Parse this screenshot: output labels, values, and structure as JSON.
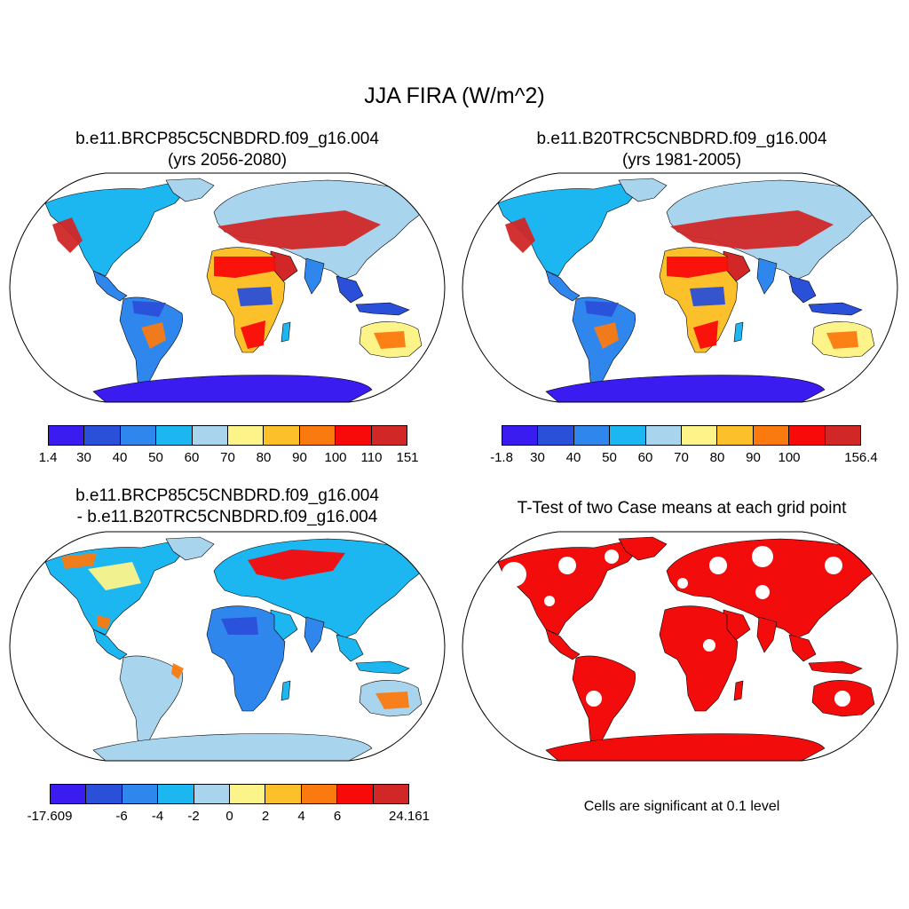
{
  "main_title": "JJA FIRA (W/m^2)",
  "palette": [
    "#3a1cf0",
    "#2a4fd8",
    "#2f87ee",
    "#1cb6f0",
    "#a8d4ee",
    "#fdf489",
    "#fcc12a",
    "#fb7a10",
    "#f90a0a",
    "#d12727"
  ],
  "significance_color": "#f20c0c",
  "panels": [
    {
      "id": "case1",
      "title_line1": "b.e11.BRCP85C5CNBDRD.f09_g16.004",
      "title_line2": "(yrs 2056-2080)",
      "colorbar_labels": [
        "1.4",
        "30",
        "40",
        "50",
        "60",
        "70",
        "80",
        "90",
        "100",
        "110",
        "151"
      ]
    },
    {
      "id": "case2",
      "title_line1": "b.e11.B20TRC5CNBDRD.f09_g16.004",
      "title_line2": "(yrs 1981-2005)",
      "colorbar_labels": [
        "-1.8",
        "30",
        "40",
        "50",
        "60",
        "70",
        "80",
        "90",
        "100",
        "",
        "156.4"
      ]
    },
    {
      "id": "diff",
      "title_line1": "b.e11.BRCP85C5CNBDRD.f09_g16.004",
      "title_line2": "- b.e11.B20TRC5CNBDRD.f09_g16.004",
      "colorbar_labels": [
        "-17.609",
        "",
        "-6",
        "-4",
        "-2",
        "0",
        "2",
        "4",
        "6",
        "",
        "24.161"
      ]
    },
    {
      "id": "ttest",
      "title_line1": "T-Test of two Case means at each grid point",
      "note": "Cells are significant at 0.1 level"
    }
  ]
}
